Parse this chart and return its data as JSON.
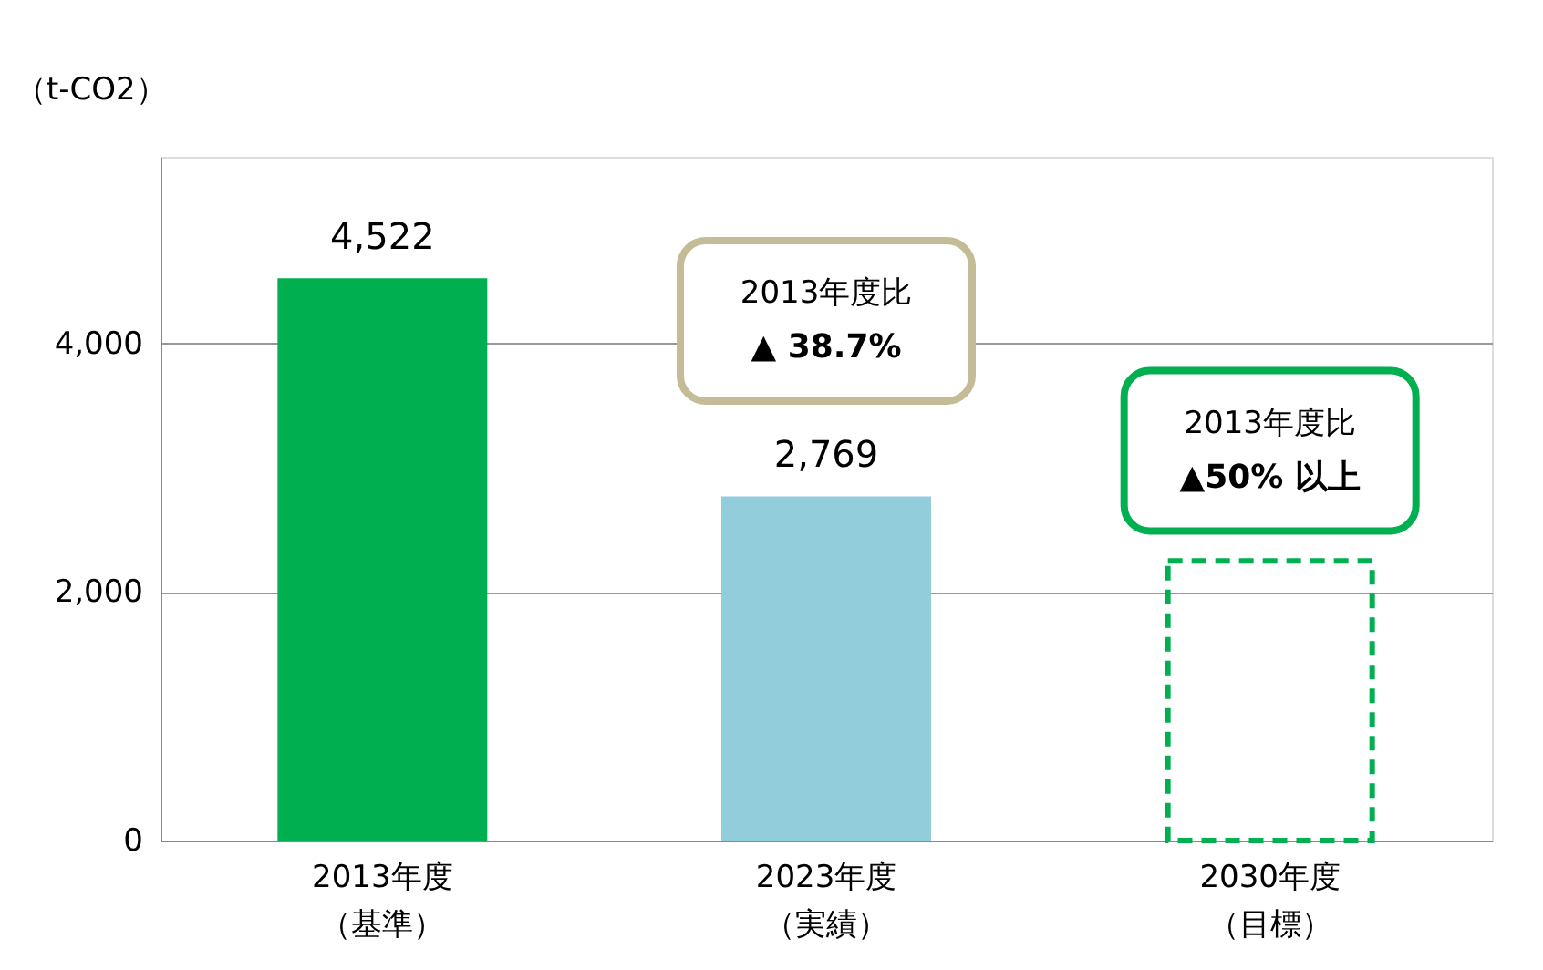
{
  "chart_data": {
    "type": "bar",
    "ylabel": "（t-CO2）",
    "categories": [
      "2013年度（基準）",
      "2023年度（実績）",
      "2030年度（目標）"
    ],
    "series": [
      {
        "values": [
          4522,
          2769,
          null
        ],
        "colors": [
          "#00b050",
          "#92cddc",
          null
        ],
        "value_labels": [
          "4,522",
          "2,769",
          null
        ]
      },
      {
        "values": [
          null,
          null,
          2250
        ],
        "color": "#00b050",
        "line_style": "dashed"
      }
    ],
    "ylim": [
      0,
      5500
    ],
    "yticks": [
      {
        "value": 0,
        "label": "0"
      },
      {
        "value": 2000,
        "label": "2,000"
      },
      {
        "value": 4000,
        "label": "4,000"
      }
    ],
    "grid": "y",
    "annotations": [
      "2013年度比\n▲ 38.7%",
      "2013年度比\n▲50% 以上"
    ]
  }
}
